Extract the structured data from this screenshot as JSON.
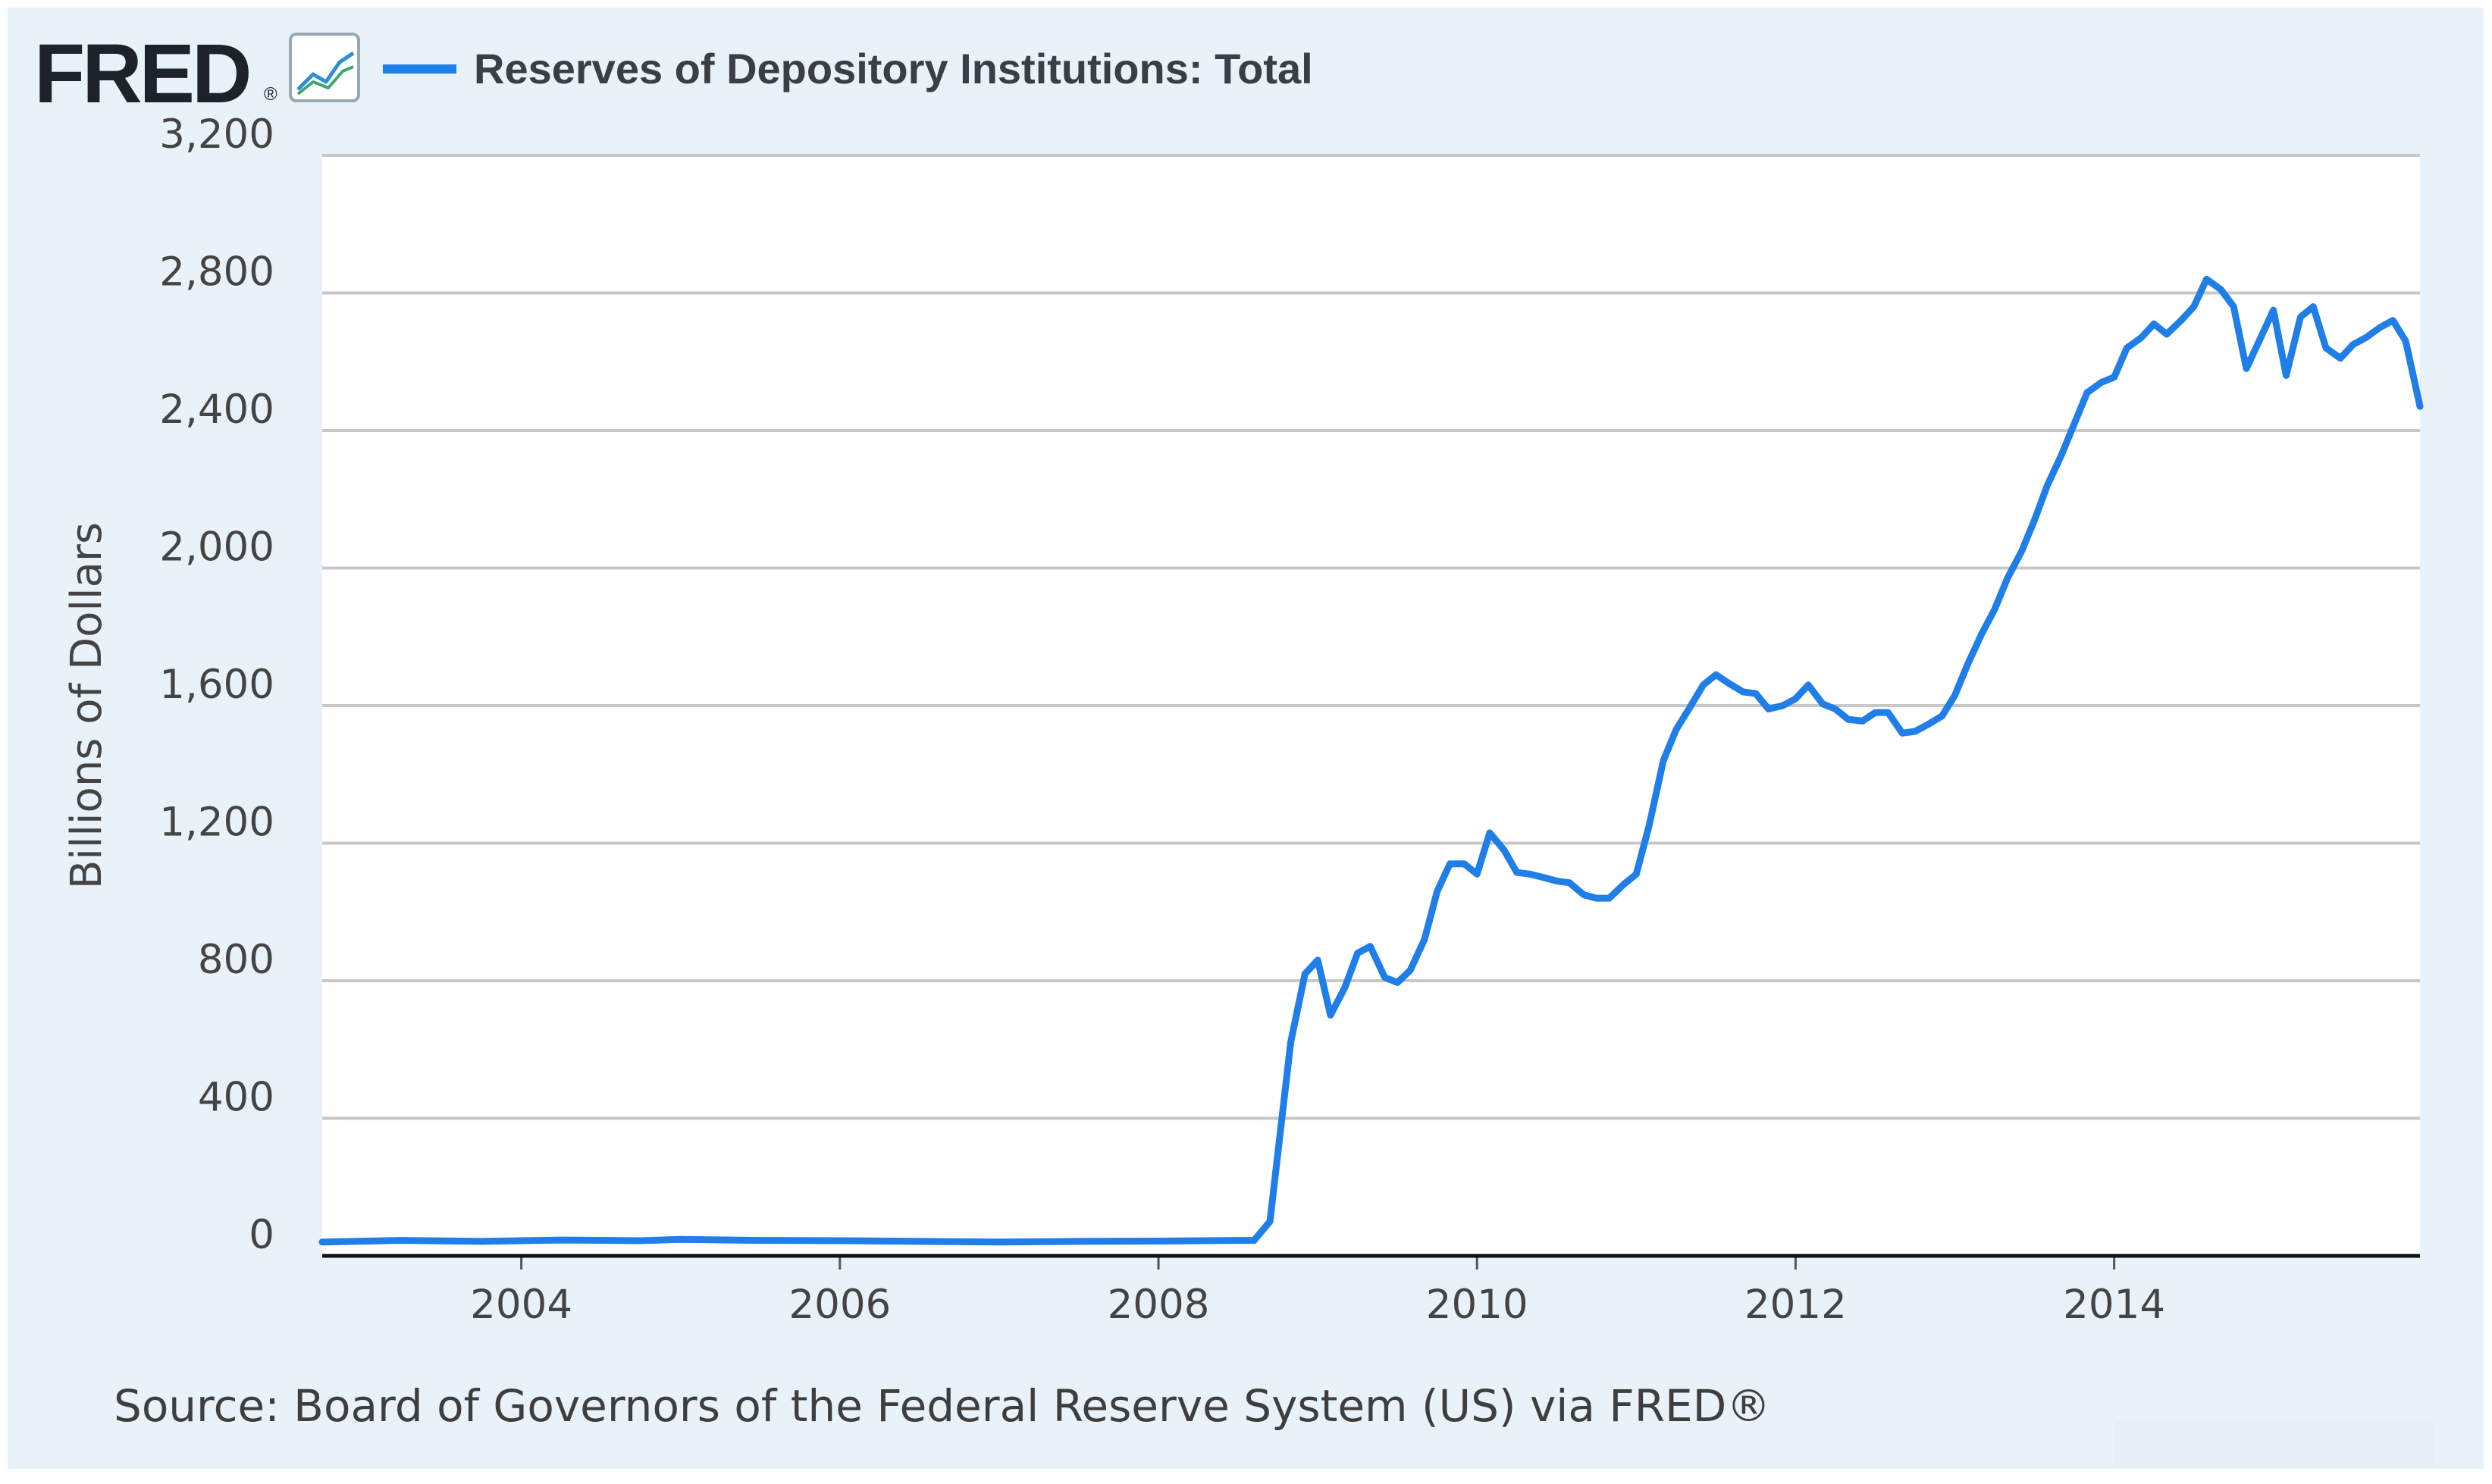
{
  "header": {
    "logo_text": "FRED",
    "registered_mark": "®",
    "logo_icon": "line-chart-icon",
    "legend_label": "Reserves of Depository Institutions: Total"
  },
  "colors": {
    "series": "#1f7ee8",
    "background": "#e9f1f9",
    "plot_bg": "#ffffff",
    "grid": "#c8c8c8"
  },
  "footer": {
    "source": "Source: Board of Governors of the Federal Reserve System (US) via FRED®"
  },
  "chart_data": {
    "type": "line",
    "title": "Reserves of Depository Institutions: Total",
    "xlabel": "",
    "ylabel": "Billions of Dollars",
    "xlim": [
      2002.75,
      2015.92
    ],
    "ylim": [
      0,
      3200
    ],
    "y_ticks": [
      0,
      400,
      800,
      1200,
      1600,
      2000,
      2400,
      2800,
      3200
    ],
    "y_tick_labels": [
      "0",
      "400",
      "800",
      "1,200",
      "1,600",
      "2,000",
      "2,400",
      "2,800",
      "3,200"
    ],
    "x_ticks": [
      2004,
      2006,
      2008,
      2010,
      2012,
      2014
    ],
    "x_tick_labels": [
      "2004",
      "2006",
      "2008",
      "2010",
      "2012",
      "2014"
    ],
    "grid": true,
    "series": [
      {
        "name": "Reserves of Depository Institutions: Total",
        "x": [
          2002.75,
          2003.25,
          2003.75,
          2004.25,
          2004.75,
          2005.0,
          2005.5,
          2006.0,
          2006.5,
          2007.0,
          2007.5,
          2008.0,
          2008.5,
          2008.6,
          2008.7,
          2008.75,
          2008.83,
          2008.92,
          2009.0,
          2009.08,
          2009.17,
          2009.25,
          2009.33,
          2009.42,
          2009.5,
          2009.58,
          2009.67,
          2009.75,
          2009.83,
          2009.92,
          2010.0,
          2010.08,
          2010.17,
          2010.25,
          2010.33,
          2010.42,
          2010.5,
          2010.58,
          2010.67,
          2010.75,
          2010.83,
          2010.92,
          2011.0,
          2011.08,
          2011.17,
          2011.25,
          2011.33,
          2011.42,
          2011.5,
          2011.58,
          2011.67,
          2011.75,
          2011.83,
          2011.92,
          2012.0,
          2012.08,
          2012.17,
          2012.25,
          2012.33,
          2012.42,
          2012.5,
          2012.58,
          2012.67,
          2012.75,
          2012.83,
          2012.92,
          2013.0,
          2013.08,
          2013.17,
          2013.25,
          2013.33,
          2013.42,
          2013.5,
          2013.58,
          2013.67,
          2013.75,
          2013.83,
          2013.92,
          2014.0,
          2014.08,
          2014.17,
          2014.25,
          2014.33,
          2014.42,
          2014.5,
          2014.58,
          2014.67,
          2014.75,
          2014.83,
          2014.92,
          2015.0,
          2015.08,
          2015.17,
          2015.25,
          2015.33,
          2015.42,
          2015.5,
          2015.58,
          2015.67,
          2015.75,
          2015.83,
          2015.92
        ],
        "values": [
          40,
          45,
          42,
          46,
          44,
          48,
          45,
          44,
          42,
          40,
          42,
          43,
          45,
          45,
          100,
          300,
          620,
          820,
          860,
          700,
          780,
          880,
          900,
          810,
          795,
          830,
          920,
          1060,
          1140,
          1140,
          1110,
          1230,
          1180,
          1115,
          1110,
          1100,
          1090,
          1085,
          1050,
          1040,
          1040,
          1080,
          1110,
          1250,
          1440,
          1530,
          1590,
          1660,
          1690,
          1665,
          1640,
          1635,
          1590,
          1600,
          1620,
          1660,
          1605,
          1590,
          1560,
          1555,
          1580,
          1580,
          1520,
          1525,
          1545,
          1570,
          1630,
          1720,
          1810,
          1880,
          1970,
          2050,
          2140,
          2240,
          2330,
          2420,
          2510,
          2540,
          2555,
          2640,
          2670,
          2710,
          2680,
          2720,
          2760,
          2840,
          2810,
          2760,
          2580,
          2670,
          2750,
          2560,
          2730,
          2760,
          2640,
          2610,
          2650,
          2670,
          2700,
          2720,
          2660,
          2470
        ]
      }
    ]
  }
}
